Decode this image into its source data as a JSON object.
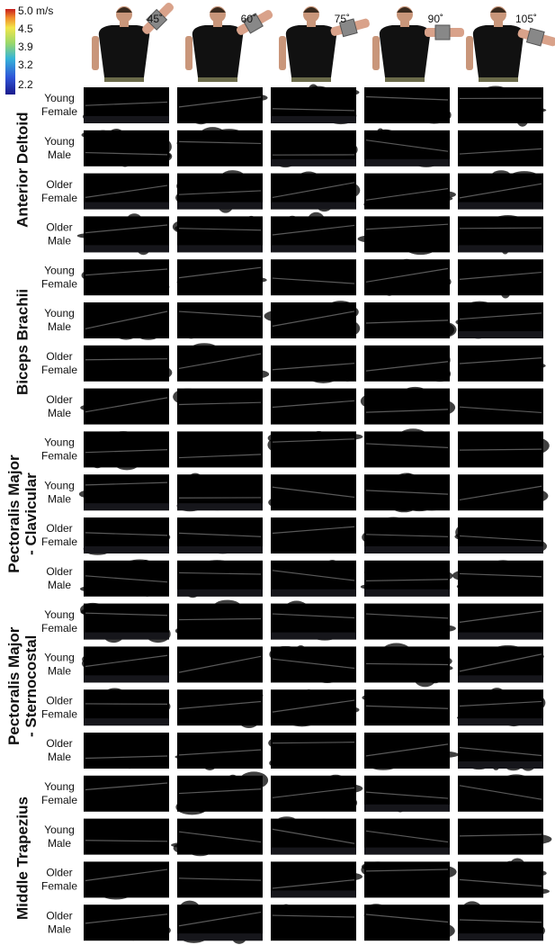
{
  "colorbar": {
    "labels": [
      "5.0 m/s",
      "4.5",
      "3.9",
      "3.2",
      "2.2"
    ]
  },
  "angles": [
    "45˚",
    "60˚",
    "75˚",
    "90˚",
    "105˚"
  ],
  "muscles": [
    {
      "lines": [
        "Anterior Deltoid"
      ]
    },
    {
      "lines": [
        "Biceps Brachii"
      ]
    },
    {
      "lines": [
        "Pectoralis Major",
        "- Clavicular"
      ]
    },
    {
      "lines": [
        "Pectoralis Major",
        "- Sternocostal"
      ]
    },
    {
      "lines": [
        "Middle Trapezius"
      ]
    }
  ],
  "groups": [
    {
      "lines": [
        "Young",
        "Female"
      ]
    },
    {
      "lines": [
        "Young",
        "Male"
      ]
    },
    {
      "lines": [
        "Older",
        "Female"
      ]
    },
    {
      "lines": [
        "Older",
        "Male"
      ]
    }
  ]
}
